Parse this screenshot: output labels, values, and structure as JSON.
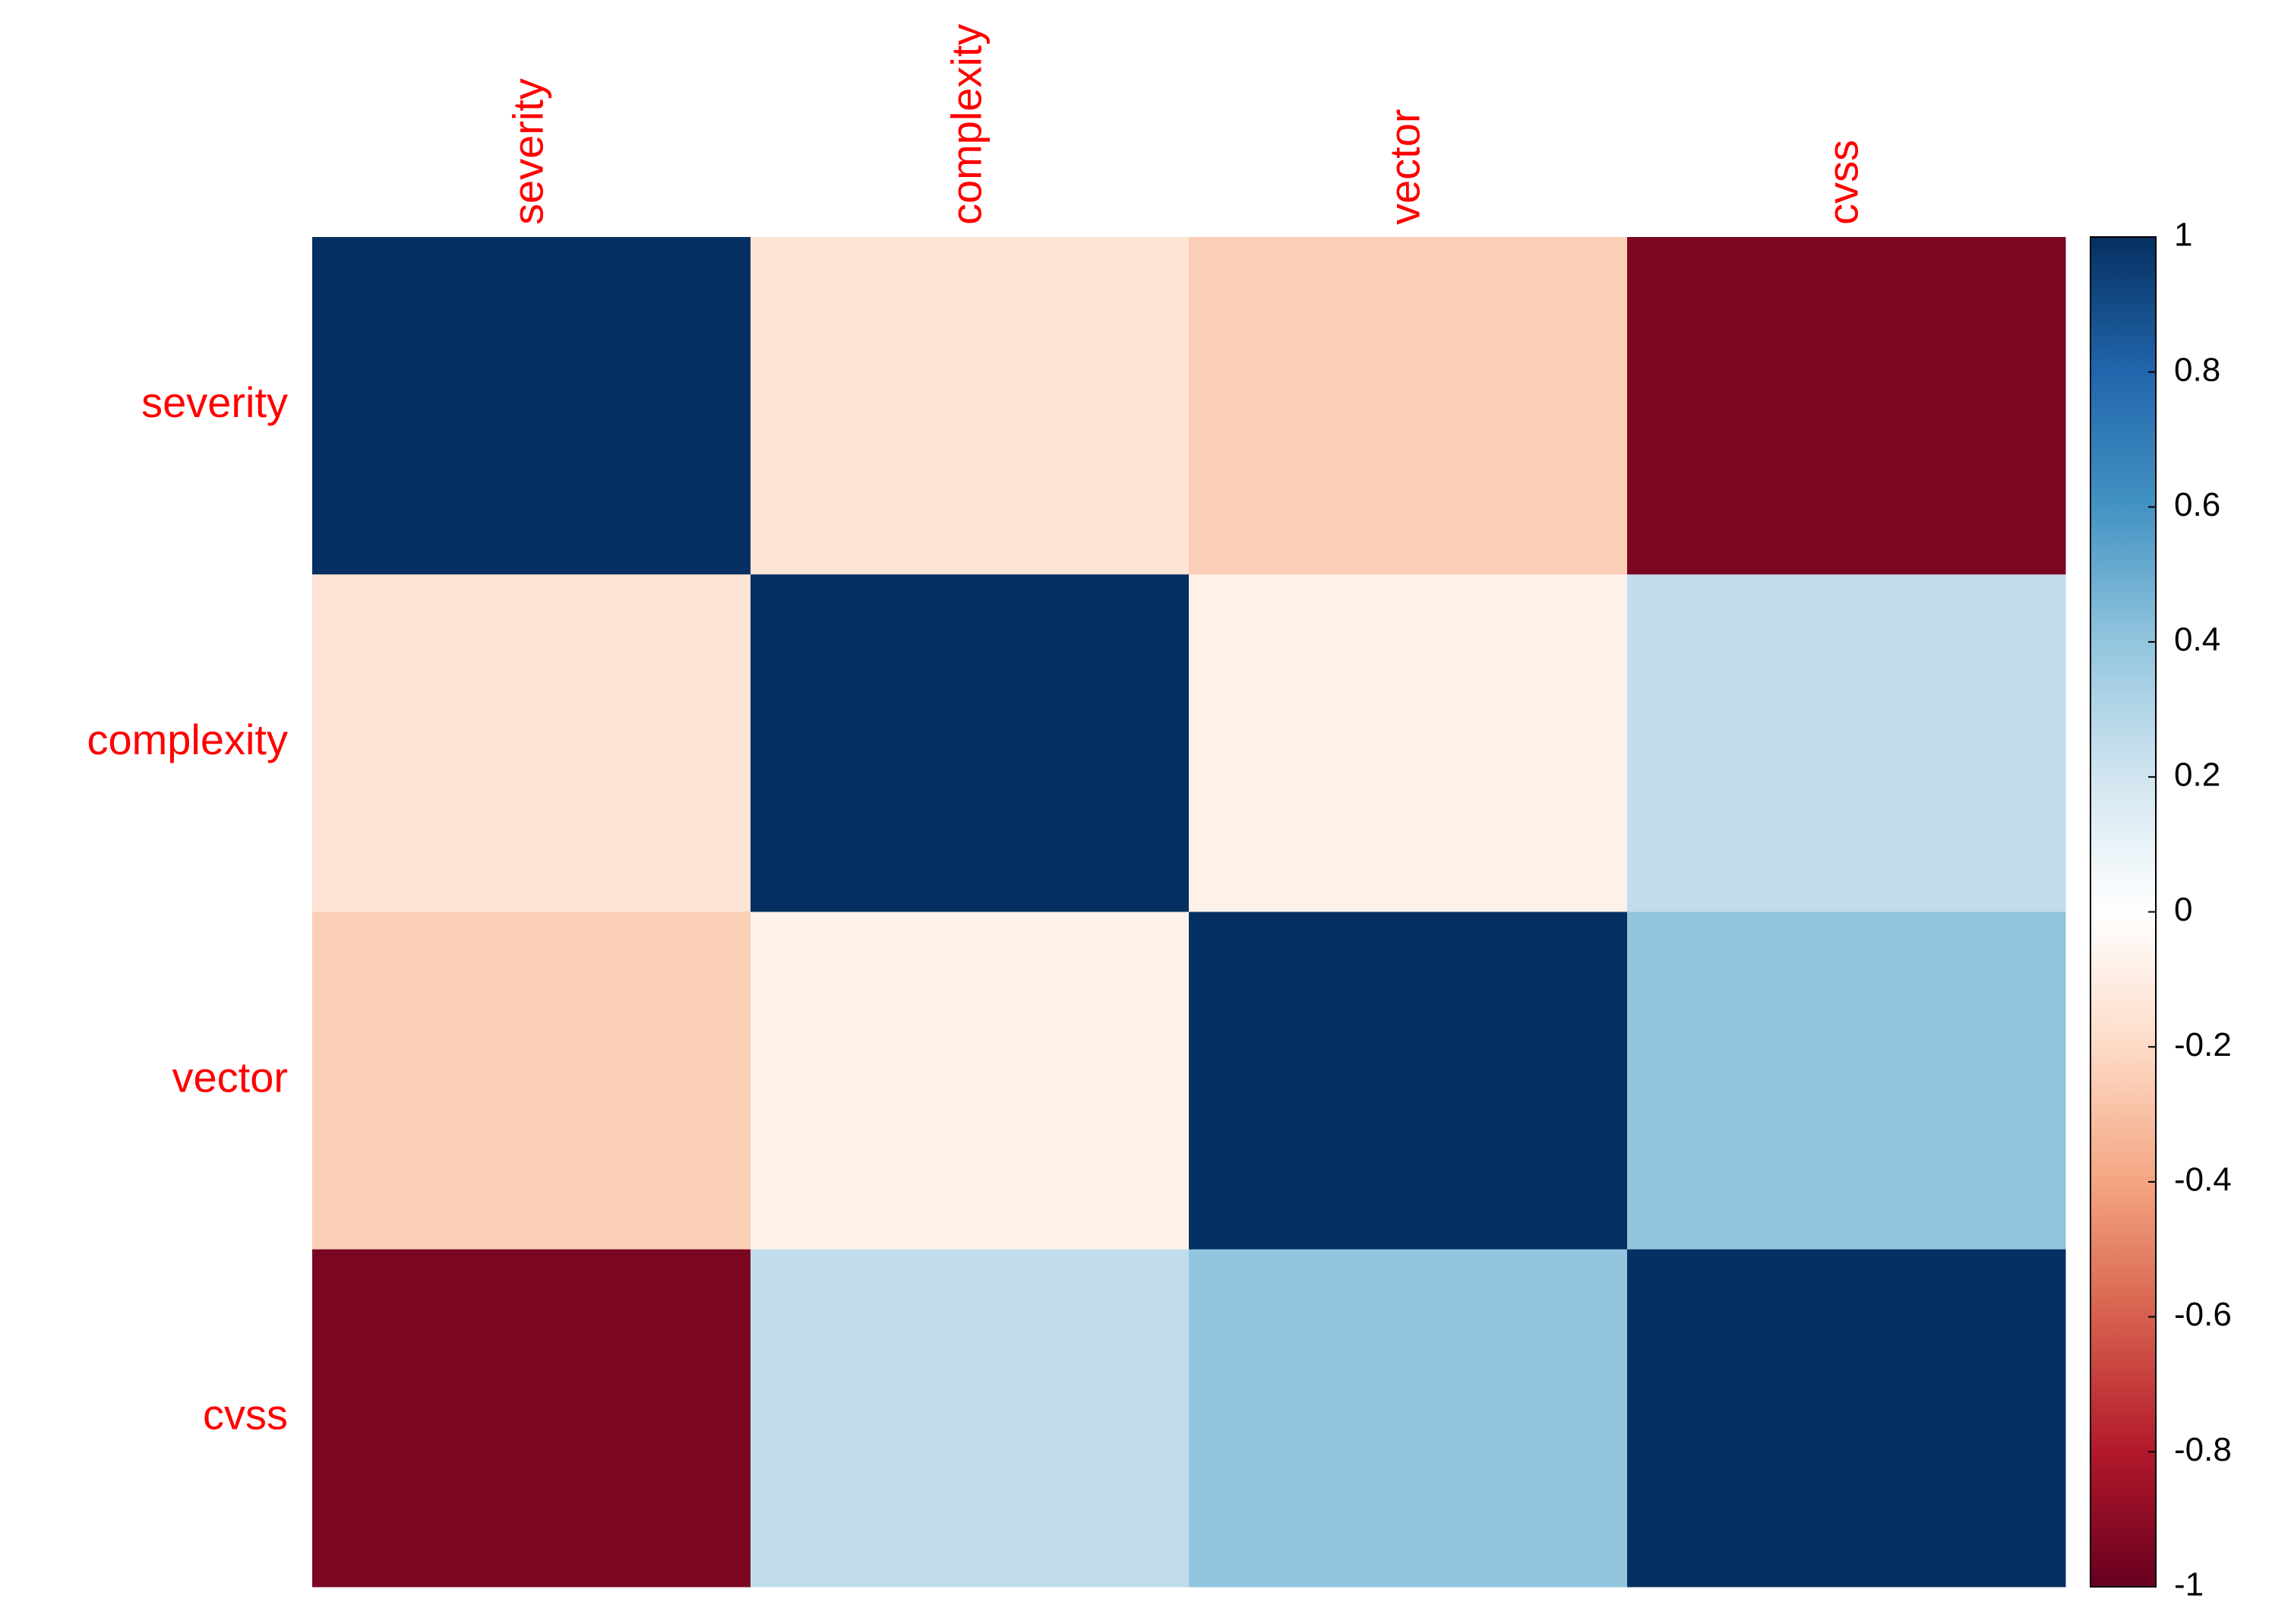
{
  "chart_data": {
    "type": "heatmap",
    "x": [
      "severity",
      "complexity",
      "vector",
      "cvss"
    ],
    "y": [
      "severity",
      "complexity",
      "vector",
      "cvss"
    ],
    "values": [
      [
        1,
        -0.15,
        -0.25,
        -0.95
      ],
      [
        -0.15,
        1,
        -0.08,
        0.25
      ],
      [
        -0.25,
        -0.08,
        1,
        0.4
      ],
      [
        -0.95,
        0.25,
        0.4,
        1
      ]
    ],
    "zlim": [
      -1,
      1
    ],
    "zticks": [
      1,
      0.8,
      0.6,
      0.4,
      0.2,
      0,
      -0.2,
      -0.4,
      -0.6,
      -0.8,
      -1
    ],
    "colors": [
      "#67001F",
      "#B2182B",
      "#D6604D",
      "#F4A582",
      "#FDDBC7",
      "#FFFFFF",
      "#D1E5F0",
      "#92C5DE",
      "#4393C3",
      "#2166AC",
      "#053061"
    ],
    "label_color": "#FF0000"
  }
}
